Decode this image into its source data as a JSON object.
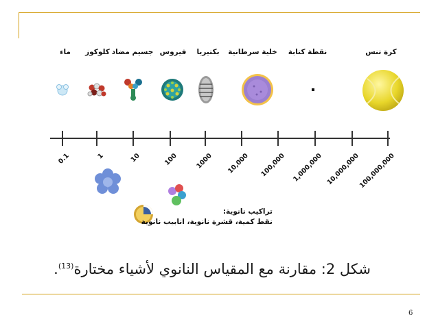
{
  "objects": [
    {
      "key": "water",
      "label": "ماء"
    },
    {
      "key": "glucose",
      "label": "كلوكوز"
    },
    {
      "key": "antibody",
      "label": "جسيم مضاد"
    },
    {
      "key": "virus",
      "label": "فيروس"
    },
    {
      "key": "bacteria",
      "label": "بكتيريا"
    },
    {
      "key": "cancer_cell",
      "label": "خلية سرطانية"
    },
    {
      "key": "dot",
      "label": "نقطة كتابة"
    },
    {
      "key": "tennis_ball",
      "label": "كرة تنس"
    }
  ],
  "scale_ticks": [
    "0.1",
    "1",
    "10",
    "100",
    "1000",
    "10,000",
    "100,000",
    "1,000,000",
    "10,000,000",
    "100,000,000"
  ],
  "nano_structures": {
    "title": "تراكيب نانوية:",
    "items": "نقط كمية، قشرة نانوية، انابيب نانوية"
  },
  "caption": {
    "main": "شكل 2: مقارنة مع المقياس النانوي لأشياء مختارة",
    "ref": "(13)",
    "end": "."
  },
  "page_number": "6",
  "colors": {
    "rule": "#d4a017",
    "tennis": "#e8d62a",
    "cancer": "#9b7fd0",
    "flower": "#6f8fd8"
  }
}
